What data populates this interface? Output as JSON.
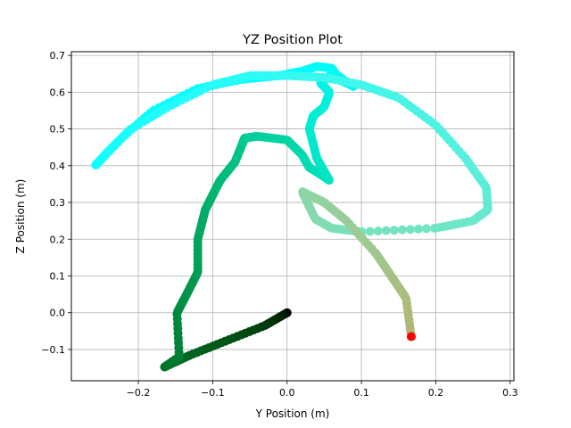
{
  "chart_data": {
    "type": "scatter",
    "title": "YZ Position Plot",
    "xlabel": "Y Position (m)",
    "ylabel": "Z Position (m)",
    "xlim": [
      -0.29,
      0.305
    ],
    "ylim": [
      -0.185,
      0.71
    ],
    "x_ticks": [
      -0.2,
      -0.1,
      0.0,
      0.1,
      0.2,
      0.3
    ],
    "x_tick_labels": [
      "−0.2",
      "−0.1",
      "0.0",
      "0.1",
      "0.2",
      "0.3"
    ],
    "y_ticks": [
      -0.1,
      0.0,
      0.1,
      0.2,
      0.3,
      0.4,
      0.5,
      0.6,
      0.7
    ],
    "y_tick_labels": [
      "−0.1",
      "0.0",
      "0.1",
      "0.2",
      "0.3",
      "0.4",
      "0.5",
      "0.6",
      "0.7"
    ],
    "grid": true,
    "colormap": "rainbow",
    "end_marker_color": "#ff0000",
    "series": [
      {
        "x": [
          0.0,
          -0.03,
          -0.08,
          -0.13,
          -0.165,
          -0.145,
          -0.148,
          -0.135,
          -0.12,
          -0.12,
          -0.11,
          -0.1,
          -0.09,
          -0.07,
          -0.06,
          -0.057,
          -0.04,
          0.0,
          0.02,
          0.03,
          0.05,
          0.057,
          0.04,
          0.03,
          0.035,
          0.05,
          0.057,
          0.045,
          0.058,
          0.09,
          0.078,
          0.065,
          0.06,
          0.04,
          0.022,
          -0.01,
          -0.06,
          -0.12,
          -0.18,
          -0.22,
          -0.258,
          -0.24,
          -0.21,
          -0.16,
          -0.1,
          -0.05,
          0.0,
          0.05,
          0.1,
          0.15,
          0.2,
          0.24,
          0.268,
          0.27,
          0.25,
          0.2,
          0.1,
          0.06,
          0.038,
          0.02,
          0.05,
          0.08,
          0.12,
          0.14,
          0.16,
          0.167
        ],
        "y": [
          0.0,
          -0.035,
          -0.075,
          -0.115,
          -0.148,
          -0.12,
          0.0,
          0.05,
          0.11,
          0.2,
          0.28,
          0.32,
          0.36,
          0.41,
          0.46,
          0.475,
          0.48,
          0.47,
          0.43,
          0.395,
          0.37,
          0.36,
          0.42,
          0.5,
          0.535,
          0.56,
          0.6,
          0.625,
          0.645,
          0.615,
          0.63,
          0.65,
          0.665,
          0.67,
          0.658,
          0.645,
          0.635,
          0.61,
          0.55,
          0.48,
          0.4,
          0.44,
          0.5,
          0.56,
          0.62,
          0.645,
          0.645,
          0.64,
          0.62,
          0.585,
          0.51,
          0.42,
          0.34,
          0.28,
          0.25,
          0.23,
          0.22,
          0.23,
          0.255,
          0.33,
          0.3,
          0.25,
          0.16,
          0.1,
          0.04,
          -0.065
        ]
      }
    ]
  }
}
